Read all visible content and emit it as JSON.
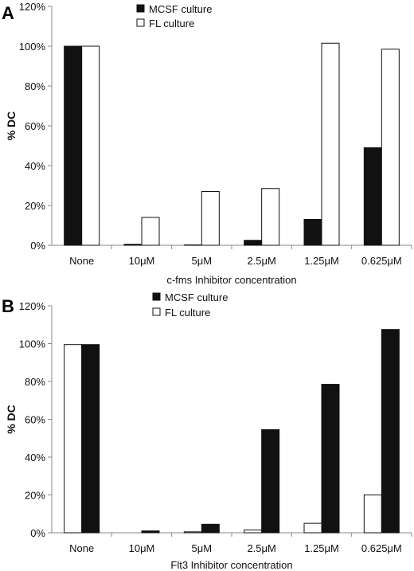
{
  "chart_data": [
    {
      "type": "bar",
      "panel_label": "A",
      "categories": [
        "None",
        "10μM",
        "5μM",
        "2.5μM",
        "1.25μM",
        "0.625μM"
      ],
      "series": [
        {
          "name": "MCSF culture",
          "fill": "#111111",
          "values": [
            100,
            0.5,
            0.2,
            2.5,
            13,
            49
          ]
        },
        {
          "name": "FL culture",
          "fill": "#ffffff",
          "values": [
            100,
            14,
            27,
            28.5,
            101.5,
            98.5
          ]
        }
      ],
      "xlabel": "c-fms Inhibitor concentration",
      "ylabel": "% DC",
      "ylim": [
        0,
        120
      ],
      "yticks": [
        "0%",
        "20%",
        "40%",
        "60%",
        "80%",
        "100%",
        "120%"
      ],
      "legend_position": "top"
    },
    {
      "type": "bar",
      "panel_label": "B",
      "categories": [
        "None",
        "10μM",
        "5μM",
        "2.5μM",
        "1.25μM",
        "0.625μM"
      ],
      "series": [
        {
          "name": "MCSF culture",
          "fill": "#111111",
          "values": [
            99.5,
            1,
            4.5,
            54.5,
            78.5,
            107.5
          ]
        },
        {
          "name": "FL culture",
          "fill": "#ffffff",
          "values": [
            99.5,
            0,
            0.5,
            1.5,
            5,
            20
          ]
        }
      ],
      "bar_order": [
        "FL culture",
        "MCSF culture"
      ],
      "xlabel": "Flt3 Inhibitor concentration",
      "ylabel": "% DC",
      "ylim": [
        0,
        120
      ],
      "yticks": [
        "0%",
        "20%",
        "40%",
        "60%",
        "80%",
        "100%",
        "120%"
      ],
      "legend_position": "top"
    }
  ]
}
